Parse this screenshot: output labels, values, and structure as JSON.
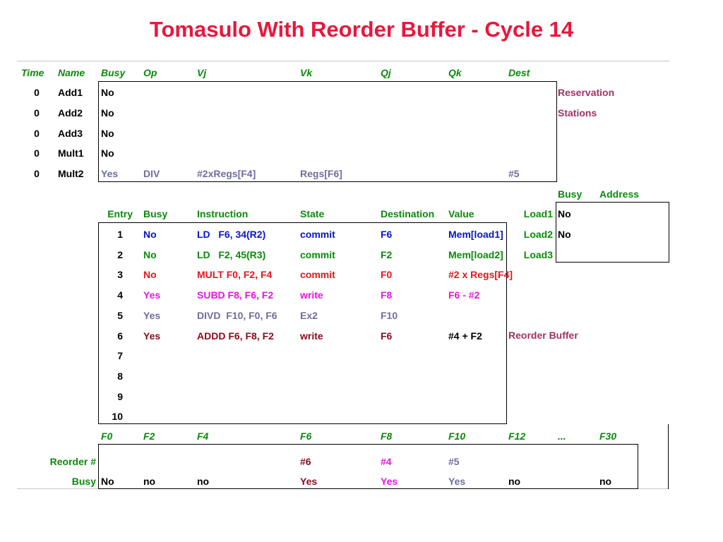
{
  "title": "Tomasulo With Reorder Buffer - Cycle 14",
  "colors": {
    "title": "#e8173c",
    "header": "#0a8a0a",
    "entry1": "#0a14c8",
    "entry2": "#0a8a0a",
    "entry3": "#e8141e",
    "entry4": "#e614e6",
    "entry5": "#6e6ea0",
    "entry6": "#8b0a1e",
    "label": "#a03264"
  },
  "rs": {
    "headers": [
      "Time",
      "Name",
      "Busy",
      "Op",
      "Vj",
      "Vk",
      "Qj",
      "Qk",
      "Dest"
    ],
    "label_line1": "Reservation",
    "label_line2": "Stations",
    "rows": [
      {
        "time": "0",
        "name": "Add1",
        "busy": "No",
        "op": "",
        "vj": "",
        "vk": "",
        "qj": "",
        "qk": "",
        "dest": ""
      },
      {
        "time": "0",
        "name": "Add2",
        "busy": "No",
        "op": "",
        "vj": "",
        "vk": "",
        "qj": "",
        "qk": "",
        "dest": ""
      },
      {
        "time": "0",
        "name": "Add3",
        "busy": "No",
        "op": "",
        "vj": "",
        "vk": "",
        "qj": "",
        "qk": "",
        "dest": ""
      },
      {
        "time": "0",
        "name": "Mult1",
        "busy": "No",
        "op": "",
        "vj": "",
        "vk": "",
        "qj": "",
        "qk": "",
        "dest": ""
      },
      {
        "time": "0",
        "name": "Mult2",
        "busy": "Yes",
        "op": "DIV",
        "vj": "#2xRegs[F4]",
        "vk": "Regs[F6]",
        "qj": "",
        "qk": "",
        "dest": "#5"
      }
    ]
  },
  "load": {
    "headers": [
      "Busy",
      "Address"
    ],
    "rows": [
      {
        "name": "Load1",
        "busy": "No",
        "address": ""
      },
      {
        "name": "Load2",
        "busy": "No",
        "address": ""
      },
      {
        "name": "Load3",
        "busy": "",
        "address": ""
      }
    ]
  },
  "rob": {
    "headers": [
      "Entry",
      "Busy",
      "Instruction",
      "State",
      "Destination",
      "Value"
    ],
    "label": "Reorder Buffer",
    "rows": [
      {
        "entry": "1",
        "busy": "No",
        "instruction": "LD   F6, 34(R2)",
        "state": "commit",
        "dest": "F6",
        "value": "Mem[load1]"
      },
      {
        "entry": "2",
        "busy": "No",
        "instruction": "LD   F2, 45(R3)",
        "state": "commit",
        "dest": "F2",
        "value": "Mem[load2]"
      },
      {
        "entry": "3",
        "busy": "No",
        "instruction": "MULT F0, F2, F4",
        "state": "commit",
        "dest": "F0",
        "value": "#2 x Regs[F4]"
      },
      {
        "entry": "4",
        "busy": "Yes",
        "instruction": "SUBD F8, F6, F2",
        "state": "write",
        "dest": "F8",
        "value": "F6 - #2"
      },
      {
        "entry": "5",
        "busy": "Yes",
        "instruction": "DIVD  F10, F0, F6",
        "state": "Ex2",
        "dest": "F10",
        "value": ""
      },
      {
        "entry": "6",
        "busy": "Yes",
        "instruction": "ADDD F6, F8, F2",
        "state": "write",
        "dest": "F6",
        "value": "#4 + F2"
      },
      {
        "entry": "7",
        "busy": "",
        "instruction": "",
        "state": "",
        "dest": "",
        "value": ""
      },
      {
        "entry": "8",
        "busy": "",
        "instruction": "",
        "state": "",
        "dest": "",
        "value": ""
      },
      {
        "entry": "9",
        "busy": "",
        "instruction": "",
        "state": "",
        "dest": "",
        "value": ""
      },
      {
        "entry": "10",
        "busy": "",
        "instruction": "",
        "state": "",
        "dest": "",
        "value": ""
      }
    ]
  },
  "regs": {
    "headers": [
      "F0",
      "F2",
      "F4",
      "F6",
      "F8",
      "F10",
      "F12",
      "...",
      "F30"
    ],
    "reorder_label": "Reorder #",
    "busy_label": "Busy",
    "reorder": [
      "",
      "",
      "",
      "#6",
      "#4",
      "#5",
      "",
      "",
      ""
    ],
    "busy": [
      "No",
      "no",
      "no",
      "Yes",
      "Yes",
      "Yes",
      "no",
      "",
      "no"
    ]
  }
}
